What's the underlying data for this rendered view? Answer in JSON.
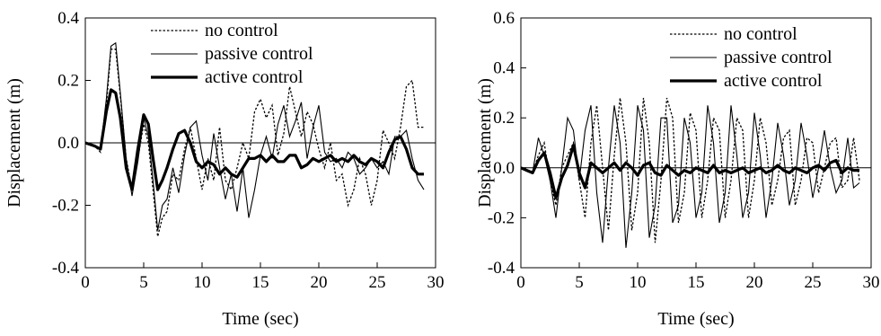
{
  "chart_data": [
    {
      "type": "line",
      "xlabel": "Time (sec)",
      "ylabel": "Displacement (m)",
      "xlim": [
        0,
        30
      ],
      "ylim": [
        -0.4,
        0.4
      ],
      "xticks": [
        "0",
        "5",
        "10",
        "15",
        "20",
        "25",
        "30"
      ],
      "yticks": [
        "0.4",
        "0.2",
        "0.0",
        "-0.2",
        "-0.4"
      ],
      "zero_line": true,
      "grid": false,
      "legend_position": "top-center",
      "series": [
        {
          "name": "no control",
          "style": "dotted",
          "x": [
            0,
            0.8,
            1.3,
            1.8,
            2.2,
            2.6,
            3.0,
            3.5,
            4.0,
            4.5,
            5.0,
            5.4,
            5.8,
            6.2,
            6.6,
            7.0,
            7.5,
            8.0,
            8.5,
            9.0,
            9.5,
            10.0,
            10.5,
            11.0,
            11.5,
            12.0,
            12.5,
            13.0,
            13.5,
            14.0,
            14.5,
            15.0,
            15.5,
            16.0,
            16.5,
            17.0,
            17.5,
            18.0,
            18.5,
            19.0,
            19.5,
            20.0,
            20.5,
            21.0,
            21.5,
            22.0,
            22.5,
            23.0,
            23.5,
            24.0,
            24.5,
            25.0,
            25.5,
            26.0,
            26.5,
            27.0,
            27.5,
            28.0,
            28.5,
            29.0
          ],
          "y": [
            0.0,
            -0.01,
            -0.03,
            0.12,
            0.3,
            0.3,
            0.15,
            -0.05,
            -0.15,
            -0.05,
            0.06,
            0.0,
            -0.15,
            -0.3,
            -0.24,
            -0.22,
            -0.1,
            -0.12,
            -0.02,
            0.05,
            -0.05,
            -0.15,
            -0.05,
            -0.12,
            0.05,
            -0.12,
            -0.15,
            -0.08,
            0.0,
            -0.05,
            0.1,
            0.14,
            0.08,
            0.12,
            -0.04,
            0.03,
            0.18,
            0.1,
            0.02,
            0.1,
            0.06,
            -0.02,
            -0.08,
            0.0,
            -0.12,
            -0.1,
            -0.2,
            -0.15,
            -0.05,
            -0.1,
            -0.2,
            -0.12,
            0.04,
            0.0,
            -0.05,
            0.05,
            0.18,
            0.2,
            0.05,
            0.05
          ]
        },
        {
          "name": "passive control",
          "style": "thin",
          "x": [
            0,
            0.8,
            1.3,
            1.8,
            2.2,
            2.6,
            3.0,
            3.5,
            4.0,
            4.5,
            5.0,
            5.4,
            5.8,
            6.2,
            6.6,
            7.0,
            7.5,
            8.0,
            8.5,
            9.0,
            9.5,
            10.0,
            10.5,
            11.0,
            11.5,
            12.0,
            12.5,
            13.0,
            13.5,
            14.0,
            14.5,
            15.0,
            15.5,
            16.0,
            16.5,
            17.0,
            17.5,
            18.0,
            18.5,
            19.0,
            19.5,
            20.0,
            20.5,
            21.0,
            21.5,
            22.0,
            22.5,
            23.0,
            23.5,
            24.0,
            24.5,
            25.0,
            25.5,
            26.0,
            26.5,
            27.0,
            27.5,
            28.0,
            28.5,
            29.0
          ],
          "y": [
            0.0,
            -0.01,
            -0.02,
            0.14,
            0.31,
            0.32,
            0.16,
            -0.05,
            -0.17,
            -0.06,
            0.08,
            0.02,
            -0.12,
            -0.28,
            -0.2,
            -0.18,
            -0.08,
            -0.16,
            -0.04,
            0.05,
            0.07,
            -0.04,
            -0.12,
            0.03,
            -0.08,
            -0.18,
            -0.1,
            -0.22,
            -0.08,
            -0.24,
            -0.15,
            -0.04,
            0.02,
            -0.05,
            0.06,
            0.12,
            0.02,
            0.07,
            0.13,
            -0.05,
            0.05,
            0.12,
            -0.03,
            -0.06,
            -0.05,
            -0.08,
            -0.03,
            -0.05,
            -0.1,
            -0.08,
            -0.05,
            -0.08,
            -0.06,
            -0.1,
            0.02,
            0.02,
            0.04,
            -0.05,
            -0.12,
            -0.15
          ]
        },
        {
          "name": "active control",
          "style": "thick",
          "x": [
            0,
            0.8,
            1.3,
            1.8,
            2.2,
            2.6,
            3.0,
            3.5,
            4.0,
            4.5,
            5.0,
            5.4,
            5.8,
            6.2,
            6.6,
            7.0,
            7.5,
            8.0,
            8.5,
            9.0,
            9.5,
            10.0,
            10.5,
            11.0,
            11.5,
            12.0,
            12.5,
            13.0,
            13.5,
            14.0,
            14.5,
            15.0,
            15.5,
            16.0,
            16.5,
            17.0,
            17.5,
            18.0,
            18.5,
            19.0,
            19.5,
            20.0,
            20.5,
            21.0,
            21.5,
            22.0,
            22.5,
            23.0,
            23.5,
            24.0,
            24.5,
            25.0,
            25.5,
            26.0,
            26.5,
            27.0,
            27.5,
            28.0,
            28.5,
            29.0
          ],
          "y": [
            0.0,
            -0.01,
            -0.02,
            0.1,
            0.17,
            0.16,
            0.08,
            -0.08,
            -0.15,
            -0.02,
            0.09,
            0.06,
            -0.05,
            -0.15,
            -0.12,
            -0.08,
            -0.02,
            0.03,
            0.04,
            0.0,
            -0.06,
            -0.08,
            -0.06,
            -0.07,
            -0.1,
            -0.08,
            -0.1,
            -0.11,
            -0.08,
            -0.05,
            -0.05,
            -0.04,
            -0.06,
            -0.04,
            -0.06,
            -0.06,
            -0.04,
            -0.04,
            -0.08,
            -0.07,
            -0.05,
            -0.06,
            -0.05,
            -0.04,
            -0.06,
            -0.05,
            -0.06,
            -0.04,
            -0.06,
            -0.07,
            -0.05,
            -0.06,
            -0.08,
            -0.03,
            0.01,
            0.02,
            -0.02,
            -0.08,
            -0.1,
            -0.1
          ]
        }
      ]
    },
    {
      "type": "line",
      "xlabel": "Time (sec)",
      "ylabel": "Displacement (m)",
      "xlim": [
        0,
        30
      ],
      "ylim": [
        -0.4,
        0.6
      ],
      "xticks": [
        "0",
        "5",
        "10",
        "15",
        "20",
        "25",
        "30"
      ],
      "yticks": [
        "0.6",
        "0.4",
        "0.2",
        "0.0",
        "-0.2",
        "-0.4"
      ],
      "zero_line": true,
      "grid": false,
      "legend_position": "top-right",
      "series": [
        {
          "name": "no control",
          "style": "dotted",
          "x": [
            0,
            0.5,
            1.0,
            1.5,
            2.0,
            2.5,
            3.0,
            3.5,
            4.0,
            4.5,
            5.0,
            5.5,
            6.0,
            6.5,
            7.0,
            7.5,
            8.0,
            8.5,
            9.0,
            9.5,
            10.0,
            10.5,
            11.0,
            11.5,
            12.0,
            12.5,
            13.0,
            13.5,
            14.0,
            14.5,
            15.0,
            15.5,
            16.0,
            16.5,
            17.0,
            17.5,
            18.0,
            18.5,
            19.0,
            19.5,
            20.0,
            20.5,
            21.0,
            21.5,
            22.0,
            22.5,
            23.0,
            23.5,
            24.0,
            24.5,
            25.0,
            25.5,
            26.0,
            26.5,
            27.0,
            27.5,
            28.0,
            28.5,
            29.0
          ],
          "y": [
            0.0,
            -0.01,
            -0.02,
            0.05,
            0.1,
            -0.05,
            -0.15,
            0.0,
            0.05,
            0.1,
            -0.05,
            -0.2,
            0.1,
            0.25,
            0.0,
            -0.25,
            0.05,
            0.28,
            0.1,
            -0.25,
            -0.1,
            0.28,
            0.1,
            -0.3,
            -0.05,
            0.28,
            0.2,
            -0.22,
            -0.1,
            0.22,
            0.15,
            -0.2,
            -0.05,
            0.2,
            0.15,
            -0.2,
            -0.05,
            0.2,
            0.15,
            -0.2,
            -0.05,
            0.2,
            0.1,
            -0.15,
            -0.05,
            0.12,
            0.15,
            -0.15,
            -0.05,
            0.12,
            0.1,
            -0.1,
            0.0,
            0.1,
            0.12,
            -0.08,
            -0.05,
            0.12,
            -0.05
          ]
        },
        {
          "name": "passive control",
          "style": "thin",
          "x": [
            0,
            0.5,
            1.0,
            1.5,
            2.0,
            2.5,
            3.0,
            3.5,
            4.0,
            4.5,
            5.0,
            5.5,
            6.0,
            6.5,
            7.0,
            7.5,
            8.0,
            8.5,
            9.0,
            9.5,
            10.0,
            10.5,
            11.0,
            11.5,
            12.0,
            12.5,
            13.0,
            13.5,
            14.0,
            14.5,
            15.0,
            15.5,
            16.0,
            16.5,
            17.0,
            17.5,
            18.0,
            18.5,
            19.0,
            19.5,
            20.0,
            20.5,
            21.0,
            21.5,
            22.0,
            22.5,
            23.0,
            23.5,
            24.0,
            24.5,
            25.0,
            25.5,
            26.0,
            26.5,
            27.0,
            27.5,
            28.0,
            28.5,
            29.0
          ],
          "y": [
            0.0,
            -0.01,
            -0.02,
            0.12,
            0.05,
            -0.05,
            -0.2,
            0.0,
            0.2,
            0.15,
            -0.05,
            0.15,
            0.25,
            -0.1,
            -0.3,
            0.0,
            0.25,
            0.1,
            -0.32,
            -0.1,
            0.25,
            0.15,
            -0.28,
            -0.15,
            0.2,
            0.2,
            -0.22,
            -0.15,
            0.2,
            0.1,
            -0.2,
            -0.1,
            0.25,
            0.1,
            -0.22,
            -0.1,
            0.25,
            0.05,
            -0.2,
            -0.1,
            0.22,
            0.05,
            -0.2,
            -0.05,
            0.18,
            0.05,
            -0.15,
            -0.05,
            0.18,
            0.05,
            -0.12,
            0.0,
            0.15,
            0.0,
            -0.1,
            -0.05,
            0.12,
            -0.08,
            -0.06
          ]
        },
        {
          "name": "active control",
          "style": "thick",
          "x": [
            0,
            0.5,
            1.0,
            1.5,
            2.0,
            2.5,
            3.0,
            3.5,
            4.0,
            4.5,
            5.0,
            5.5,
            6.0,
            6.5,
            7.0,
            7.5,
            8.0,
            8.5,
            9.0,
            9.5,
            10.0,
            10.5,
            11.0,
            11.5,
            12.0,
            12.5,
            13.0,
            13.5,
            14.0,
            14.5,
            15.0,
            15.5,
            16.0,
            16.5,
            17.0,
            17.5,
            18.0,
            18.5,
            19.0,
            19.5,
            20.0,
            20.5,
            21.0,
            21.5,
            22.0,
            22.5,
            23.0,
            23.5,
            24.0,
            24.5,
            25.0,
            25.5,
            26.0,
            26.5,
            27.0,
            27.5,
            28.0,
            28.5,
            29.0
          ],
          "y": [
            0.0,
            -0.01,
            -0.02,
            0.03,
            0.06,
            -0.02,
            -0.12,
            -0.04,
            0.01,
            0.09,
            -0.02,
            -0.08,
            0.02,
            0.0,
            -0.02,
            0.0,
            0.02,
            -0.01,
            0.02,
            0.0,
            -0.03,
            0.01,
            0.02,
            -0.02,
            -0.03,
            0.01,
            -0.01,
            -0.03,
            -0.01,
            -0.02,
            0.0,
            -0.01,
            -0.02,
            0.01,
            -0.02,
            -0.01,
            -0.02,
            -0.01,
            0.0,
            -0.02,
            -0.01,
            0.0,
            -0.02,
            -0.01,
            0.01,
            -0.01,
            -0.02,
            0.0,
            -0.01,
            -0.02,
            0.0,
            0.01,
            -0.01,
            0.02,
            0.03,
            -0.02,
            0.0,
            -0.01,
            -0.01
          ]
        }
      ]
    }
  ]
}
